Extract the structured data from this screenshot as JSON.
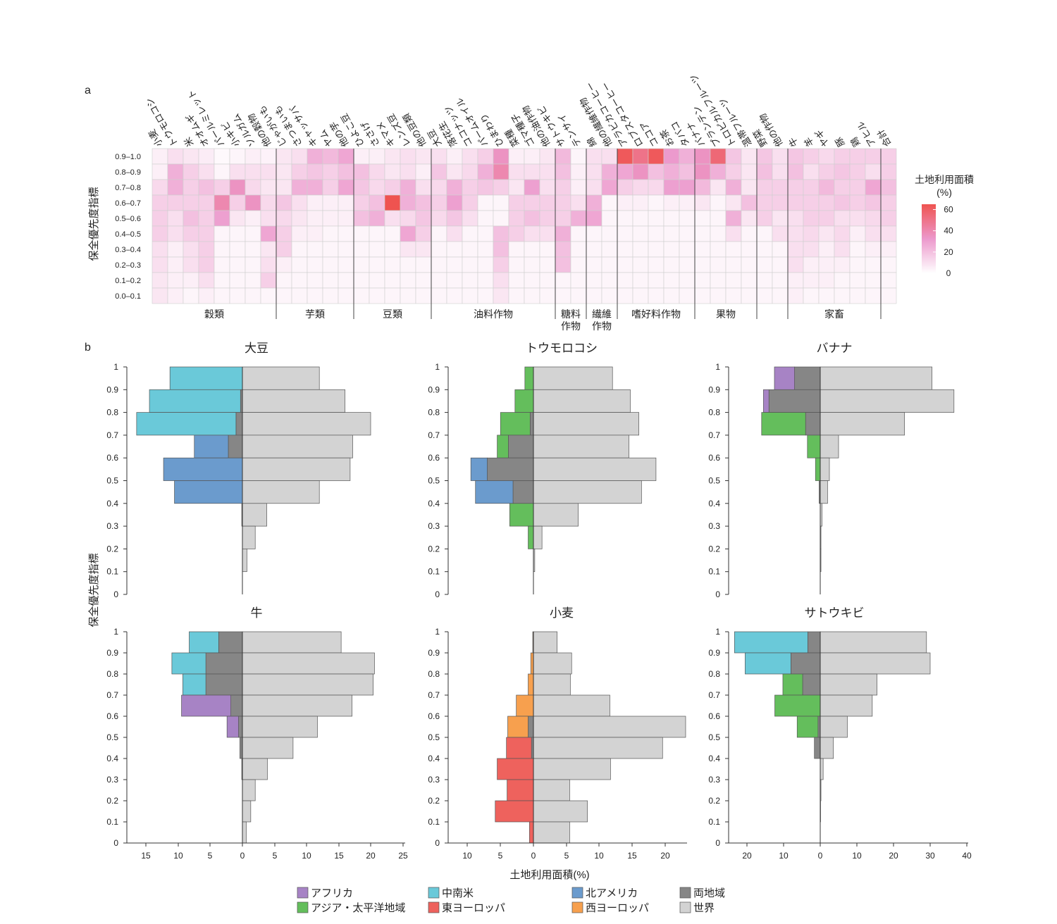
{
  "panel_labels": {
    "a": "a",
    "b": "b"
  },
  "colors": {
    "heat_max": "#ef5350",
    "heat_mid": "#ec98cc",
    "heat_min": "#ffffff",
    "africa": "#a783c5",
    "latin_america": "#6ac9d9",
    "north_america": "#6b9bcd",
    "both_regions": "#868686",
    "asia_pacific": "#64be5c",
    "east_europe": "#ee625d",
    "west_europe": "#f7a04e",
    "world": "#d3d3d3"
  },
  "chart_data": [
    {
      "type": "heatmap",
      "ylabel": "保全優先度指標",
      "y_categories": [
        "0.9–1.0",
        "0.8–0.9",
        "0.7–0.8",
        "0.6–0.7",
        "0.5–0.6",
        "0.4–0.5",
        "0.3–0.4",
        "0.2–0.3",
        "0.1–0.2",
        "0.0–0.1"
      ],
      "x_categories": [
        "小麦",
        "トウモロコシ",
        "米",
        "オオムギ",
        "パールミレット",
        "小キビ",
        "ソルガム",
        "他の穀物",
        "じゃがいも",
        "さつまいも",
        "キャッサバ",
        "ヤム",
        "他の芋",
        "ひよこ豆",
        "ささげ",
        "キマメ",
        "レンズ豆",
        "他の豆類",
        "大豆",
        "落花生",
        "ココナッツ",
        "パームオイル",
        "ひまわり",
        "菜種",
        "ゴマ種子",
        "他の油作物",
        "サトウキビ",
        "テンサイ",
        "綿",
        "他の繊維作物",
        "アラビカコーヒー",
        "ロブスタコーヒー",
        "ココア",
        "お茶",
        "タバコ",
        "バナナ",
        "プランテン",
        "トロピカルフルーツ",
        "温帯フルーツ",
        "野菜",
        "他の作物",
        "牛",
        "羊",
        "ヤギ",
        "豚",
        "鶏",
        "アヒル",
        "合計"
      ],
      "groups": [
        {
          "label": "穀類",
          "start": 0,
          "count": 8
        },
        {
          "label": "芋類",
          "start": 8,
          "count": 5
        },
        {
          "label": "豆類",
          "start": 13,
          "count": 5
        },
        {
          "label": "油料作物",
          "start": 18,
          "count": 8
        },
        {
          "label": "糖料\n作物",
          "start": 26,
          "count": 2
        },
        {
          "label": "繊維\n作物",
          "start": 28,
          "count": 2
        },
        {
          "label": "嗜好料作物",
          "start": 30,
          "count": 5
        },
        {
          "label": "果物",
          "start": 35,
          "count": 4
        },
        {
          "label": "",
          "start": 39,
          "count": 2
        },
        {
          "label": "家畜",
          "start": 41,
          "count": 6
        },
        {
          "label": "",
          "start": 47,
          "count": 1
        }
      ],
      "colorbar": {
        "title": "土地利用面積\n(%)",
        "ticks": [
          0,
          20,
          40,
          60
        ],
        "max": 65
      },
      "values": [
        [
          5,
          10,
          8,
          6,
          2,
          3,
          5,
          4,
          8,
          10,
          25,
          22,
          28,
          5,
          5,
          8,
          10,
          8,
          10,
          5,
          10,
          15,
          35,
          5,
          5,
          8,
          22,
          3,
          10,
          10,
          62,
          50,
          62,
          32,
          25,
          35,
          55,
          18,
          8,
          18,
          10,
          18,
          15,
          12,
          15,
          15,
          15,
          15
        ],
        [
          5,
          25,
          15,
          10,
          3,
          10,
          10,
          10,
          8,
          15,
          18,
          15,
          20,
          20,
          12,
          8,
          10,
          5,
          18,
          8,
          12,
          25,
          40,
          10,
          10,
          10,
          20,
          5,
          10,
          25,
          28,
          35,
          20,
          25,
          20,
          35,
          25,
          15,
          8,
          20,
          10,
          20,
          10,
          15,
          18,
          15,
          10,
          15
        ],
        [
          12,
          25,
          15,
          20,
          15,
          35,
          12,
          8,
          8,
          25,
          25,
          15,
          28,
          18,
          12,
          15,
          25,
          10,
          12,
          25,
          15,
          18,
          15,
          8,
          30,
          10,
          15,
          5,
          10,
          28,
          15,
          12,
          12,
          30,
          30,
          22,
          8,
          25,
          8,
          15,
          15,
          15,
          15,
          22,
          15,
          15,
          28,
          20
        ],
        [
          15,
          15,
          15,
          15,
          40,
          15,
          35,
          12,
          18,
          10,
          5,
          5,
          5,
          15,
          20,
          65,
          25,
          20,
          15,
          30,
          15,
          3,
          3,
          15,
          15,
          15,
          15,
          10,
          25,
          3,
          5,
          5,
          3,
          5,
          5,
          8,
          3,
          8,
          20,
          15,
          15,
          15,
          15,
          15,
          18,
          15,
          18,
          15
        ],
        [
          15,
          10,
          20,
          15,
          30,
          8,
          5,
          10,
          12,
          8,
          5,
          5,
          5,
          20,
          25,
          10,
          12,
          18,
          12,
          18,
          10,
          3,
          3,
          15,
          20,
          15,
          15,
          25,
          28,
          3,
          3,
          3,
          3,
          3,
          3,
          3,
          3,
          25,
          8,
          15,
          8,
          10,
          15,
          15,
          10,
          10,
          12,
          15
        ],
        [
          15,
          10,
          15,
          15,
          3,
          3,
          3,
          28,
          15,
          5,
          5,
          3,
          3,
          3,
          3,
          3,
          28,
          15,
          3,
          10,
          3,
          3,
          20,
          15,
          10,
          10,
          25,
          3,
          3,
          3,
          3,
          3,
          3,
          3,
          3,
          3,
          3,
          10,
          3,
          3,
          10,
          10,
          12,
          8,
          12,
          5,
          10,
          10
        ],
        [
          10,
          5,
          10,
          15,
          3,
          3,
          3,
          8,
          15,
          3,
          3,
          3,
          3,
          3,
          3,
          3,
          8,
          8,
          3,
          3,
          3,
          3,
          20,
          3,
          3,
          3,
          20,
          3,
          3,
          3,
          3,
          3,
          3,
          3,
          3,
          3,
          3,
          3,
          3,
          3,
          3,
          10,
          10,
          5,
          10,
          3,
          5,
          5
        ],
        [
          10,
          5,
          10,
          15,
          3,
          3,
          3,
          10,
          5,
          3,
          3,
          3,
          3,
          3,
          3,
          3,
          3,
          3,
          3,
          3,
          3,
          3,
          15,
          3,
          3,
          3,
          20,
          3,
          3,
          3,
          3,
          3,
          3,
          3,
          3,
          3,
          3,
          3,
          3,
          3,
          3,
          10,
          5,
          5,
          5,
          3,
          3,
          3
        ],
        [
          8,
          5,
          5,
          10,
          3,
          3,
          3,
          15,
          3,
          3,
          3,
          3,
          3,
          3,
          3,
          3,
          3,
          3,
          3,
          3,
          3,
          3,
          10,
          3,
          3,
          3,
          3,
          3,
          3,
          3,
          3,
          3,
          3,
          3,
          3,
          3,
          3,
          3,
          3,
          3,
          3,
          5,
          5,
          5,
          3,
          3,
          3,
          3
        ],
        [
          8,
          5,
          3,
          5,
          3,
          3,
          3,
          3,
          3,
          3,
          3,
          3,
          3,
          3,
          3,
          3,
          3,
          3,
          3,
          3,
          3,
          3,
          8,
          3,
          3,
          3,
          3,
          3,
          3,
          3,
          3,
          3,
          3,
          3,
          3,
          3,
          3,
          3,
          3,
          3,
          3,
          5,
          3,
          3,
          3,
          3,
          3,
          3
        ]
      ]
    },
    {
      "type": "bar",
      "orientation": "horizontal",
      "title": "大豆",
      "y_bins": [
        0.95,
        0.85,
        0.75,
        0.65,
        0.55,
        0.45,
        0.35,
        0.25,
        0.15,
        0.05
      ],
      "world": [
        12,
        16,
        20,
        17.2,
        16.8,
        12,
        3.8,
        2,
        0.7,
        0
      ],
      "left_stack": [
        [
          {
            "region": "latin_america",
            "value": 11.3
          }
        ],
        [
          {
            "region": "both_regions",
            "value": 0.3
          },
          {
            "region": "latin_america",
            "value": 14.2
          }
        ],
        [
          {
            "region": "both_regions",
            "value": 1
          },
          {
            "region": "latin_america",
            "value": 15.5
          }
        ],
        [
          {
            "region": "both_regions",
            "value": 2.2
          },
          {
            "region": "north_america",
            "value": 5.3
          }
        ],
        [
          {
            "region": "north_america",
            "value": 12.3
          }
        ],
        [
          {
            "region": "north_america",
            "value": 10.6
          }
        ],
        [
          {
            "region": "both_regions",
            "value": 0.1
          }
        ],
        [],
        [],
        []
      ]
    },
    {
      "type": "bar",
      "orientation": "horizontal",
      "title": "トウモロコシ",
      "y_bins": [
        0.95,
        0.85,
        0.75,
        0.65,
        0.55,
        0.45,
        0.35,
        0.25,
        0.15,
        0.05
      ],
      "world": [
        12,
        14.7,
        16,
        14.5,
        18.6,
        16.4,
        6.8,
        1.3,
        0.2,
        0
      ],
      "left_stack": [
        [
          {
            "region": "asia_pacific",
            "value": 1.3
          }
        ],
        [
          {
            "region": "asia_pacific",
            "value": 2.8
          }
        ],
        [
          {
            "region": "both_regions",
            "value": 0.5
          },
          {
            "region": "asia_pacific",
            "value": 4.5
          }
        ],
        [
          {
            "region": "both_regions",
            "value": 3.8
          },
          {
            "region": "asia_pacific",
            "value": 1.7
          }
        ],
        [
          {
            "region": "both_regions",
            "value": 7
          },
          {
            "region": "north_america",
            "value": 2.5
          }
        ],
        [
          {
            "region": "both_regions",
            "value": 3.1
          },
          {
            "region": "north_america",
            "value": 5.7
          }
        ],
        [
          {
            "region": "asia_pacific",
            "value": 3.6
          }
        ],
        [
          {
            "region": "asia_pacific",
            "value": 0.8
          }
        ],
        [],
        []
      ]
    },
    {
      "type": "bar",
      "orientation": "horizontal",
      "title": "バナナ",
      "y_bins": [
        0.95,
        0.85,
        0.75,
        0.65,
        0.55,
        0.45,
        0.35,
        0.25,
        0.15,
        0.05
      ],
      "world": [
        30.5,
        36.5,
        23,
        5,
        2.5,
        2,
        0.5,
        0.2,
        0.2,
        0
      ],
      "left_stack": [
        [
          {
            "region": "both_regions",
            "value": 7
          },
          {
            "region": "africa",
            "value": 5.5
          }
        ],
        [
          {
            "region": "both_regions",
            "value": 14
          },
          {
            "region": "africa",
            "value": 1.5
          }
        ],
        [
          {
            "region": "both_regions",
            "value": 4
          },
          {
            "region": "asia_pacific",
            "value": 12
          }
        ],
        [
          {
            "region": "asia_pacific",
            "value": 3.5
          }
        ],
        [
          {
            "region": "asia_pacific",
            "value": 1.3
          }
        ],
        [
          {
            "region": "both_regions",
            "value": 0.3
          }
        ],
        [],
        [],
        [],
        []
      ]
    },
    {
      "type": "bar",
      "orientation": "horizontal",
      "title": "牛",
      "y_bins": [
        0.95,
        0.85,
        0.75,
        0.65,
        0.55,
        0.45,
        0.35,
        0.25,
        0.15,
        0.05
      ],
      "world": [
        15.4,
        20.6,
        20.4,
        17.1,
        11.7,
        7.9,
        3.9,
        2,
        1.3,
        0.6
      ],
      "left_stack": [
        [
          {
            "region": "both_regions",
            "value": 3.7
          },
          {
            "region": "latin_america",
            "value": 4.6
          }
        ],
        [
          {
            "region": "both_regions",
            "value": 5.7
          },
          {
            "region": "latin_america",
            "value": 5.3
          }
        ],
        [
          {
            "region": "both_regions",
            "value": 5.7
          },
          {
            "region": "latin_america",
            "value": 3.6
          }
        ],
        [
          {
            "region": "both_regions",
            "value": 1.8
          },
          {
            "region": "africa",
            "value": 7.7
          }
        ],
        [
          {
            "region": "both_regions",
            "value": 0.6
          },
          {
            "region": "africa",
            "value": 1.8
          }
        ],
        [
          {
            "region": "both_regions",
            "value": 0.4
          }
        ],
        [
          {
            "region": "both_regions",
            "value": 0.1
          }
        ],
        [],
        [],
        []
      ]
    },
    {
      "type": "bar",
      "orientation": "horizontal",
      "title": "小麦",
      "y_bins": [
        0.95,
        0.85,
        0.75,
        0.65,
        0.55,
        0.45,
        0.35,
        0.25,
        0.15,
        0.05
      ],
      "world": [
        3.6,
        5.8,
        5.6,
        11.6,
        23.1,
        19.6,
        11.7,
        5.5,
        8.2,
        5.5
      ],
      "left_stack": [
        [
          {
            "region": "west_europe",
            "value": 0.1
          }
        ],
        [
          {
            "region": "west_europe",
            "value": 0.4
          }
        ],
        [
          {
            "region": "west_europe",
            "value": 0.8
          }
        ],
        [
          {
            "region": "west_europe",
            "value": 2.6
          }
        ],
        [
          {
            "region": "both_regions",
            "value": 0.8
          },
          {
            "region": "west_europe",
            "value": 3.1
          }
        ],
        [
          {
            "region": "both_regions",
            "value": 0.3
          },
          {
            "region": "east_europe",
            "value": 3.8
          }
        ],
        [
          {
            "region": "east_europe",
            "value": 5.5
          }
        ],
        [
          {
            "region": "east_europe",
            "value": 4
          }
        ],
        [
          {
            "region": "east_europe",
            "value": 5.8
          }
        ],
        [
          {
            "region": "east_europe",
            "value": 0.6
          }
        ]
      ]
    },
    {
      "type": "bar",
      "orientation": "horizontal",
      "title": "サトウキビ",
      "y_bins": [
        0.95,
        0.85,
        0.75,
        0.65,
        0.55,
        0.45,
        0.35,
        0.25,
        0.15,
        0.05
      ],
      "world": [
        29,
        30,
        15.5,
        14.2,
        7.4,
        3.6,
        0.8,
        0.2,
        0.1,
        0
      ],
      "left_stack": [
        [
          {
            "region": "both_regions",
            "value": 3.4
          },
          {
            "region": "latin_america",
            "value": 20
          }
        ],
        [
          {
            "region": "both_regions",
            "value": 8
          },
          {
            "region": "latin_america",
            "value": 12.5
          }
        ],
        [
          {
            "region": "both_regions",
            "value": 4.8
          },
          {
            "region": "asia_pacific",
            "value": 5.4
          }
        ],
        [
          {
            "region": "asia_pacific",
            "value": 12.4
          }
        ],
        [
          {
            "region": "both_regions",
            "value": 0.6
          },
          {
            "region": "asia_pacific",
            "value": 5.7
          }
        ],
        [
          {
            "region": "both_regions",
            "value": 1.6
          }
        ],
        [],
        [],
        [],
        []
      ]
    }
  ],
  "histograms": {
    "ylabel": "保全優先度指標",
    "xlabel": "土地利用面積(%)",
    "y_ticks": [
      "0",
      "0.1",
      "0.2",
      "0.3",
      "0.4",
      "0.5",
      "0.6",
      "0.7",
      "0.8",
      "0.9",
      "1"
    ],
    "x_ticks_left_column": [
      "15",
      "10",
      "5",
      "0",
      "5",
      "10",
      "15",
      "20",
      "25"
    ],
    "x_ticks_middle_column": [
      "10",
      "5",
      "0",
      "5",
      "10",
      "15",
      "20"
    ],
    "x_ticks_right_column": [
      "20",
      "10",
      "0",
      "10",
      "20",
      "30",
      "40"
    ]
  },
  "legend": [
    {
      "key": "africa",
      "label": "アフリカ"
    },
    {
      "key": "asia_pacific",
      "label": "アジア・太平洋地域"
    },
    {
      "key": "latin_america",
      "label": "中南米"
    },
    {
      "key": "east_europe",
      "label": "東ヨーロッパ"
    },
    {
      "key": "north_america",
      "label": "北アメリカ"
    },
    {
      "key": "west_europe",
      "label": "西ヨーロッパ"
    },
    {
      "key": "both_regions",
      "label": "両地域"
    },
    {
      "key": "world",
      "label": "世界"
    }
  ]
}
